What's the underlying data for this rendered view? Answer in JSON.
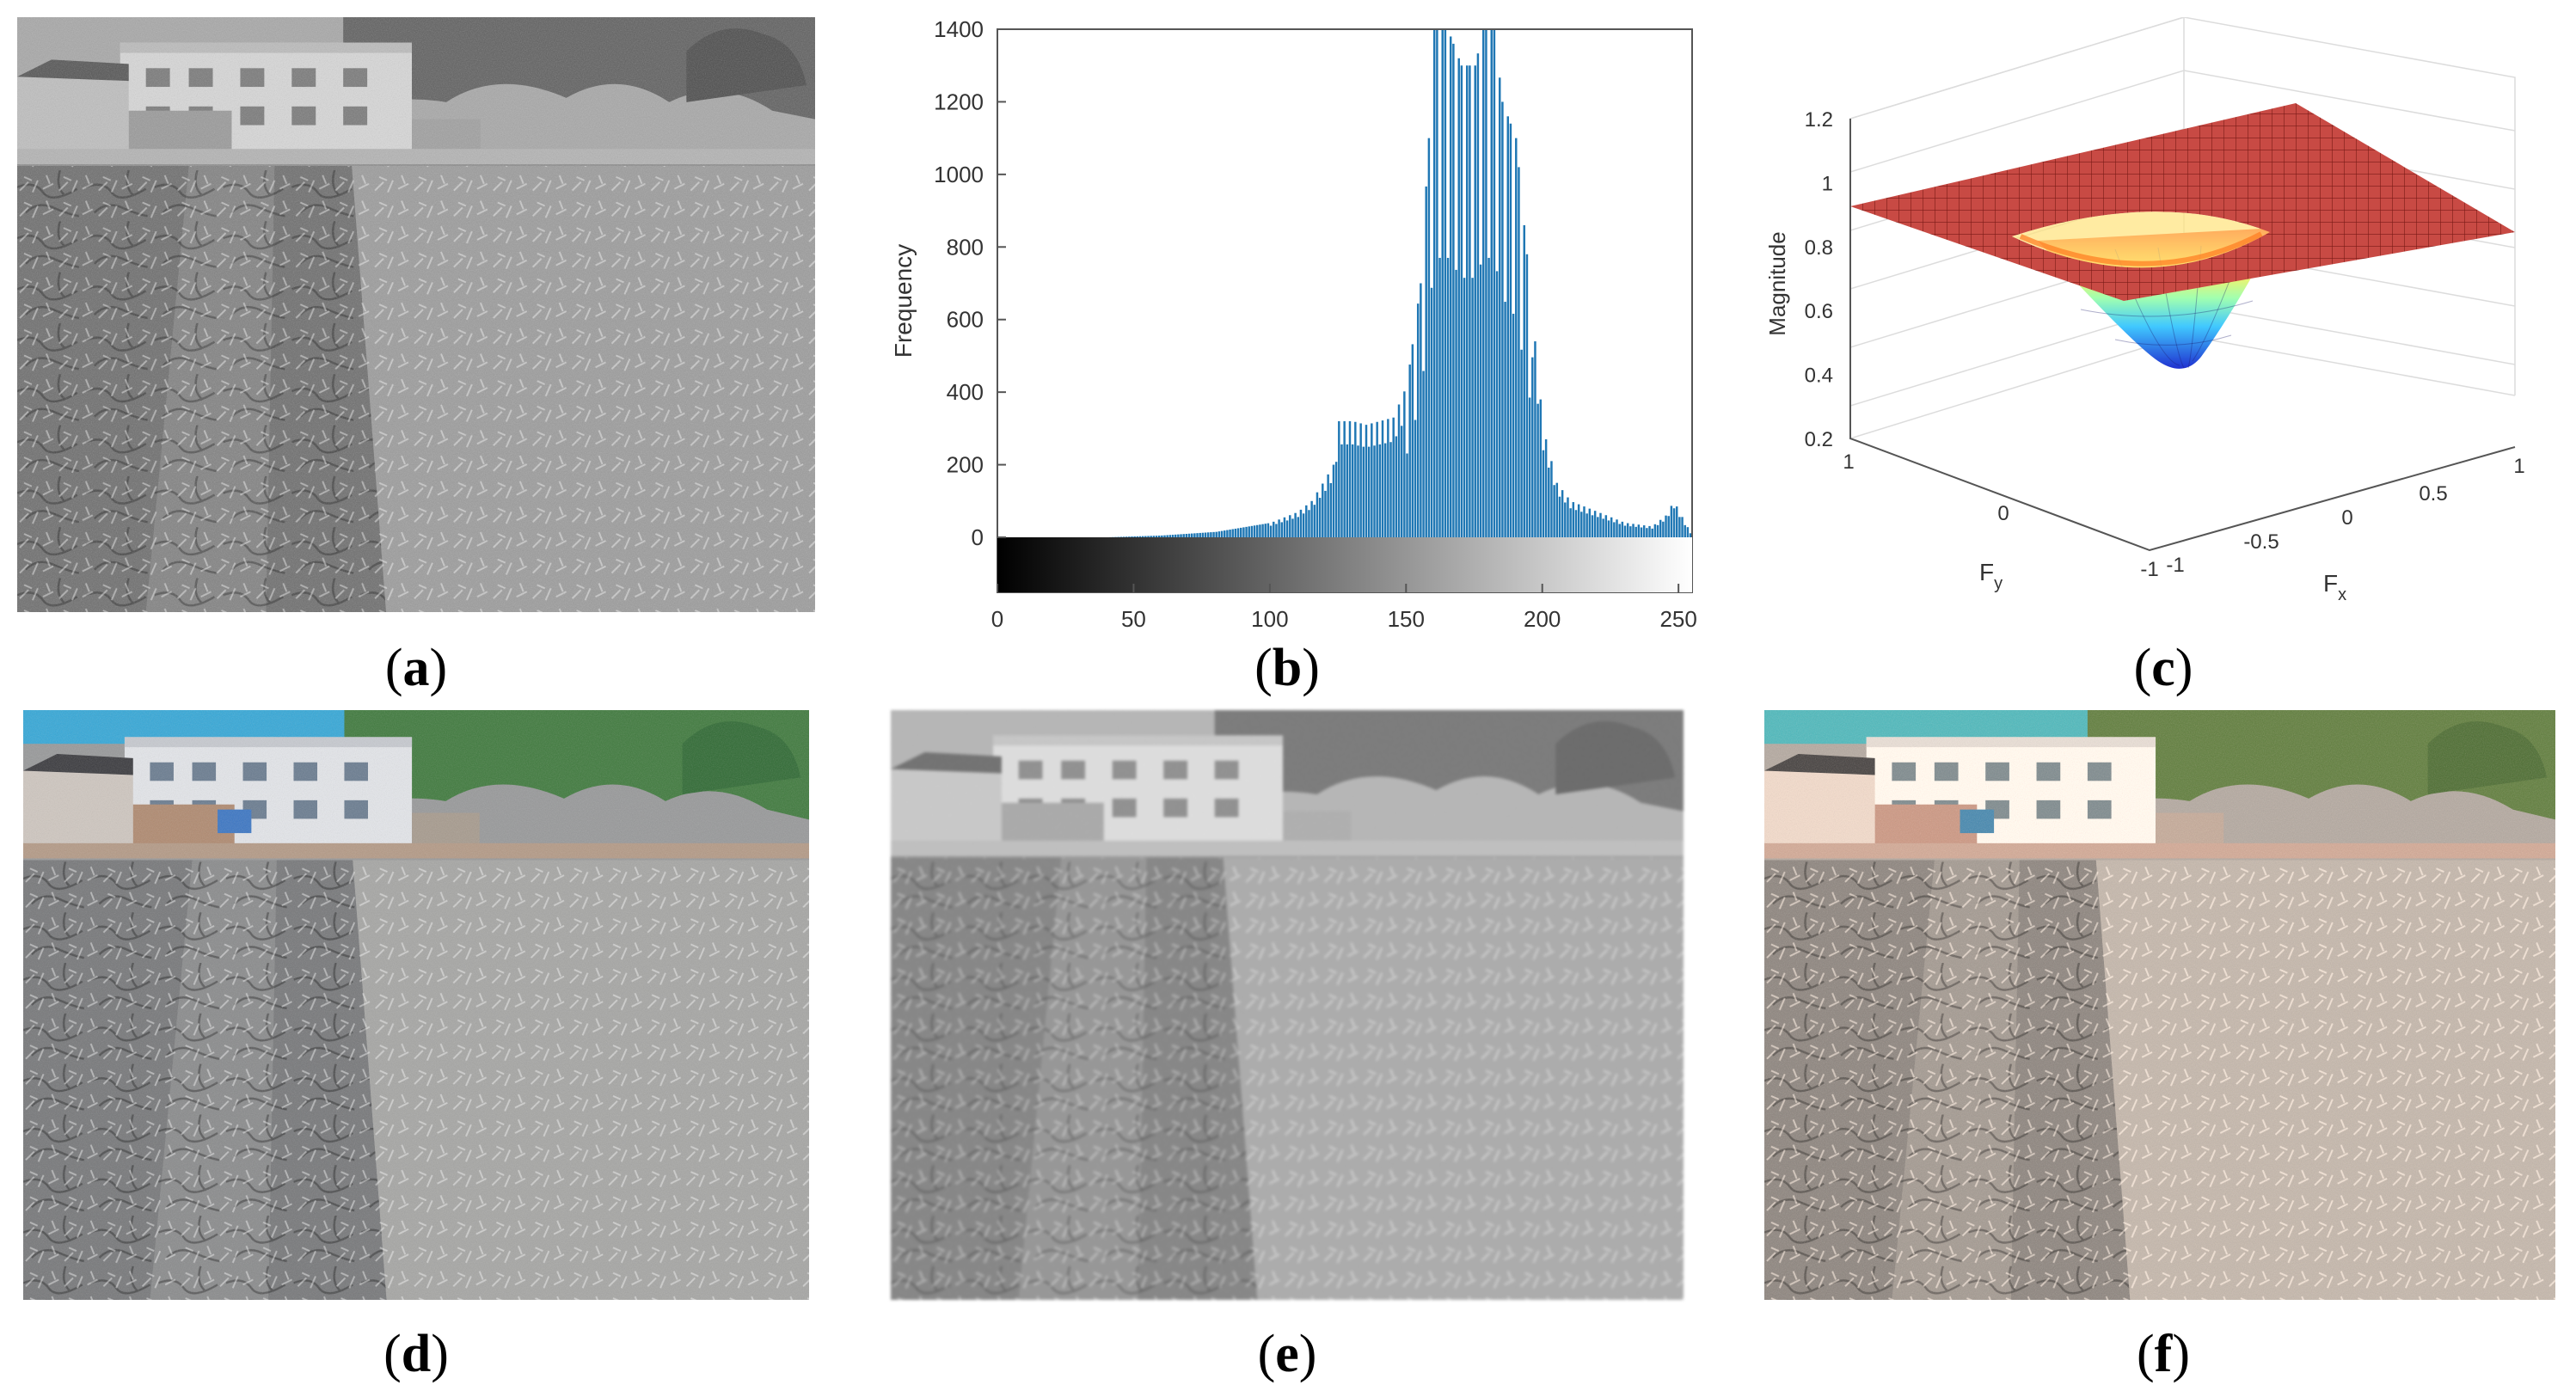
{
  "captions": [
    {
      "id": "a",
      "letter": "a"
    },
    {
      "id": "b",
      "letter": "b"
    },
    {
      "id": "c",
      "letter": "c"
    },
    {
      "id": "d",
      "letter": "d"
    },
    {
      "id": "e",
      "letter": "e"
    },
    {
      "id": "f",
      "letter": "f"
    }
  ],
  "chart_data": [
    {
      "type": "bar",
      "panel": "b",
      "title": "",
      "xlabel": "",
      "ylabel": "Frequency",
      "xlim": [
        0,
        255
      ],
      "ylim": [
        0,
        1400
      ],
      "xticks": [
        0,
        50,
        100,
        150,
        200,
        250
      ],
      "yticks": [
        0,
        200,
        400,
        600,
        800,
        1000,
        1200,
        1400
      ],
      "bar_color": "#1f77b4",
      "colorbar": "grayscale 0-255",
      "profile": [
        [
          0,
          0
        ],
        [
          40,
          0
        ],
        [
          60,
          5
        ],
        [
          80,
          15
        ],
        [
          100,
          40
        ],
        [
          110,
          70
        ],
        [
          115,
          100
        ],
        [
          120,
          160
        ],
        [
          123,
          200
        ],
        [
          125,
          320
        ],
        [
          130,
          320
        ],
        [
          135,
          310
        ],
        [
          140,
          320
        ],
        [
          145,
          330
        ],
        [
          150,
          420
        ],
        [
          155,
          700
        ],
        [
          158,
          1100
        ],
        [
          160,
          1400
        ],
        [
          165,
          1400
        ],
        [
          170,
          1300
        ],
        [
          175,
          1300
        ],
        [
          178,
          1400
        ],
        [
          182,
          1400
        ],
        [
          185,
          1200
        ],
        [
          190,
          1100
        ],
        [
          195,
          700
        ],
        [
          200,
          300
        ],
        [
          205,
          150
        ],
        [
          210,
          100
        ],
        [
          220,
          70
        ],
        [
          230,
          40
        ],
        [
          240,
          30
        ],
        [
          245,
          60
        ],
        [
          248,
          100
        ],
        [
          250,
          70
        ],
        [
          255,
          0
        ]
      ]
    },
    {
      "type": "surface",
      "panel": "c",
      "title": "",
      "xlabel": "F_x",
      "ylabel": "F_y",
      "zlabel": "Magnitude",
      "xlim": [
        -1,
        1
      ],
      "ylim": [
        -1,
        1
      ],
      "zlim": [
        0.2,
        1.2
      ],
      "xticks": [
        -1,
        -0.5,
        0,
        0.5,
        1
      ],
      "yticks": [
        -1,
        0,
        1
      ],
      "zticks": [
        0.2,
        0.4,
        0.6,
        0.8,
        1,
        1.2
      ],
      "description_of_shape": "flat plane at magnitude 1 with a gaussian notch at the center dipping to about 0.3",
      "min_magnitude": 0.3,
      "plateau_magnitude": 1
    }
  ],
  "hist_labels": {
    "ylabel": "Frequency",
    "yticks": [
      "0",
      "200",
      "400",
      "600",
      "800",
      "1000",
      "1200",
      "1400"
    ],
    "xticks": [
      "0",
      "50",
      "100",
      "150",
      "200",
      "250"
    ]
  },
  "surf_labels": {
    "zlabel": "Magnitude",
    "zticks": [
      "0.2",
      "0.4",
      "0.6",
      "0.8",
      "1",
      "1.2"
    ],
    "fy_ticks": [
      "1",
      "0",
      "-1"
    ],
    "fx_ticks": [
      "-1",
      "-0.5",
      "0",
      "0.5",
      "1"
    ],
    "fx_label": "F",
    "fx_sub": "x",
    "fy_label": "F",
    "fy_sub": "y"
  }
}
